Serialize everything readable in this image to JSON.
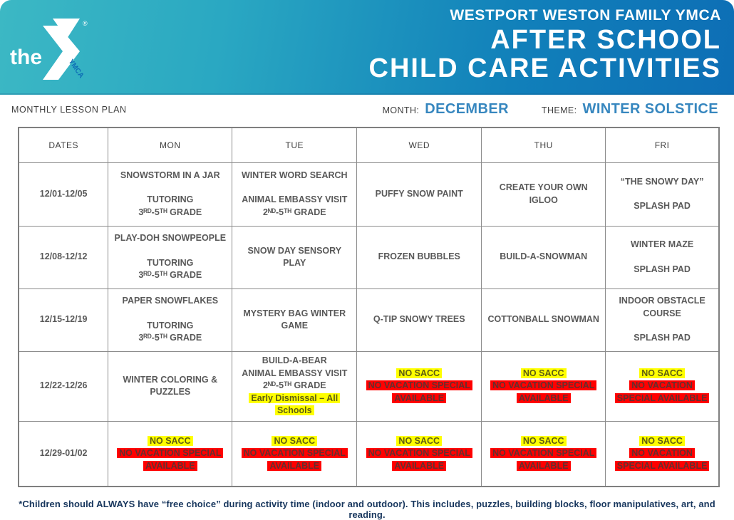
{
  "header": {
    "org": "WESTPORT WESTON FAMILY YMCA",
    "title_line1": "AFTER SCHOOL",
    "title_line2": "CHILD CARE ACTIVITIES",
    "logo": {
      "the": "the",
      "ymca": "YMCA",
      "registered": "®"
    },
    "colors": {
      "gradient_left": "#3CB8C4",
      "gradient_right": "#0D6EB5"
    }
  },
  "meta": {
    "plan_label": "MONTHLY LESSON PLAN",
    "month_label": "MONTH:",
    "month_value": "DECEMBER",
    "theme_label": "THEME:",
    "theme_value": "WINTER SOLSTICE",
    "accent_color": "#3787BF"
  },
  "table": {
    "columns": [
      "DATES",
      "MON",
      "TUE",
      "WED",
      "THU",
      "FRI"
    ],
    "highlight_colors": {
      "yellow": "#FFFF00",
      "red": "#FF0000"
    },
    "rows": [
      {
        "dates": "12/01-12/05",
        "cells": [
          [
            {
              "t": "SNOWSTORM IN A JAR"
            },
            {
              "t": ""
            },
            {
              "t": "TUTORING"
            },
            {
              "t": "3ᴿᴰ-5ᵀᴴ GRADE"
            }
          ],
          [
            {
              "t": "WINTER WORD SEARCH"
            },
            {
              "t": ""
            },
            {
              "t": "ANIMAL EMBASSY VISIT"
            },
            {
              "t": "2ᴺᴰ-5ᵀᴴ GRADE"
            }
          ],
          [
            {
              "t": "PUFFY SNOW PAINT"
            }
          ],
          [
            {
              "t": "CREATE YOUR OWN IGLOO"
            }
          ],
          [
            {
              "t": "“THE SNOWY DAY”"
            },
            {
              "t": ""
            },
            {
              "t": "SPLASH PAD"
            }
          ]
        ]
      },
      {
        "dates": "12/08-12/12",
        "cells": [
          [
            {
              "t": "PLAY-DOH SNOWPEOPLE"
            },
            {
              "t": ""
            },
            {
              "t": "TUTORING"
            },
            {
              "t": "3ᴿᴰ-5ᵀᴴ GRADE"
            }
          ],
          [
            {
              "t": "SNOW DAY SENSORY PLAY"
            }
          ],
          [
            {
              "t": "FROZEN BUBBLES"
            }
          ],
          [
            {
              "t": "BUILD-A-SNOWMAN"
            }
          ],
          [
            {
              "t": "WINTER MAZE"
            },
            {
              "t": ""
            },
            {
              "t": "SPLASH PAD"
            }
          ]
        ]
      },
      {
        "dates": "12/15-12/19",
        "cells": [
          [
            {
              "t": "PAPER SNOWFLAKES"
            },
            {
              "t": ""
            },
            {
              "t": "TUTORING"
            },
            {
              "t": "3ᴿᴰ-5ᵀᴴ GRADE"
            }
          ],
          [
            {
              "t": "MYSTERY BAG WINTER GAME"
            }
          ],
          [
            {
              "t": "Q-TIP SNOWY TREES"
            }
          ],
          [
            {
              "t": "COTTONBALL SNOWMAN"
            }
          ],
          [
            {
              "t": "INDOOR OBSTACLE COURSE"
            },
            {
              "t": ""
            },
            {
              "t": "SPLASH PAD"
            }
          ]
        ]
      },
      {
        "dates": "12/22-12/26",
        "cells": [
          [
            {
              "t": "WINTER COLORING & PUZZLES"
            }
          ],
          [
            {
              "t": "BUILD-A-BEAR"
            },
            {
              "t": "ANIMAL EMBASSY VISIT"
            },
            {
              "t": "2ᴺᴰ-5ᵀᴴ GRADE"
            },
            {
              "t": "Early Dismissal – All Schools",
              "hl": "yellow"
            }
          ],
          [
            {
              "t": "NO SACC",
              "hl": "yellow"
            },
            {
              "t": "NO VACATION SPECIAL AVAILABLE",
              "hl": "red"
            }
          ],
          [
            {
              "t": "NO SACC",
              "hl": "yellow"
            },
            {
              "t": "NO VACATION SPECIAL AVAILABLE",
              "hl": "red"
            }
          ],
          [
            {
              "t": "NO SACC",
              "hl": "yellow"
            },
            {
              "t": "NO VACATION SPECIAL AVAILABLE",
              "hl": "red"
            }
          ]
        ]
      },
      {
        "dates": "12/29-01/02",
        "cells": [
          [
            {
              "t": "NO SACC",
              "hl": "yellow"
            },
            {
              "t": "NO VACATION SPECIAL AVAILABLE",
              "hl": "red"
            }
          ],
          [
            {
              "t": "NO SACC",
              "hl": "yellow"
            },
            {
              "t": "NO VACATION SPECIAL AVAILABLE",
              "hl": "red"
            }
          ],
          [
            {
              "t": "NO SACC",
              "hl": "yellow"
            },
            {
              "t": "NO VACATION SPECIAL AVAILABLE",
              "hl": "red"
            }
          ],
          [
            {
              "t": "NO SACC",
              "hl": "yellow"
            },
            {
              "t": "NO VACATION SPECIAL AVAILABLE",
              "hl": "red"
            }
          ],
          [
            {
              "t": "NO SACC",
              "hl": "yellow"
            },
            {
              "t": "NO VACATION SPECIAL AVAILABLE",
              "hl": "red"
            }
          ]
        ]
      }
    ]
  },
  "footer": {
    "note": "*Children should ALWAYS have “free choice” during activity time (indoor and outdoor). This includes, puzzles, building blocks, floor manipulatives, art, and reading."
  }
}
